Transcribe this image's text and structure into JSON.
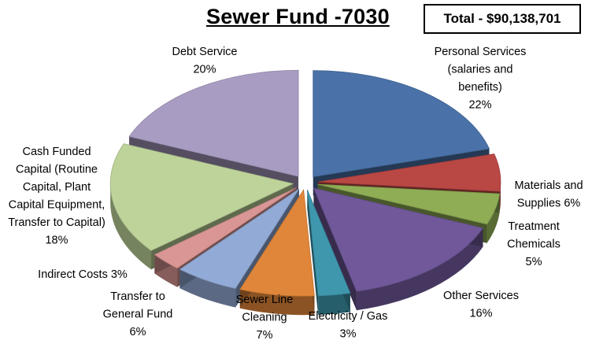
{
  "title": "Sewer Fund -7030",
  "total": "Total - $90,138,701",
  "chart_data": {
    "type": "pie",
    "title": "Sewer Fund -7030",
    "slices": [
      {
        "name": "Personal Services (salaries and benefits)",
        "label_lines": [
          "Personal Services",
          "(salaries and",
          "benefits)"
        ],
        "pct_text": "22%",
        "value": 22,
        "color": "#4A72A8"
      },
      {
        "name": "Materials and Supplies",
        "label_lines": [
          "Materials and",
          "Supplies 6%"
        ],
        "pct_text": "",
        "value": 6,
        "color": "#B94744"
      },
      {
        "name": "Treatment Chemicals",
        "label_lines": [
          "Treatment",
          "Chemicals"
        ],
        "pct_text": "5%",
        "value": 5,
        "color": "#8FAD55"
      },
      {
        "name": "Other Services",
        "label_lines": [
          "Other Services"
        ],
        "pct_text": "16%",
        "value": 16,
        "color": "#70589A"
      },
      {
        "name": "Electricity / Gas",
        "label_lines": [
          "Electricity / Gas"
        ],
        "pct_text": "3%",
        "value": 3,
        "color": "#3E97AD"
      },
      {
        "name": "Sewer Line Cleaning",
        "label_lines": [
          "Sewer Line",
          "Cleaning"
        ],
        "pct_text": "7%",
        "value": 7,
        "color": "#E0863A"
      },
      {
        "name": "Transfer to General Fund",
        "label_lines": [
          "Transfer to",
          "General Fund"
        ],
        "pct_text": "6%",
        "value": 6,
        "color": "#92AAD6"
      },
      {
        "name": "Indirect Costs",
        "label_lines": [
          "Indirect Costs 3%"
        ],
        "pct_text": "",
        "value": 3,
        "color": "#D99694"
      },
      {
        "name": "Cash Funded Capital (Routine Capital, Plant Capital Equipment, Transfer to Capital)",
        "label_lines": [
          "Cash Funded",
          "Capital (Routine",
          "Capital, Plant",
          "Capital Equipment,",
          "Transfer to Capital)"
        ],
        "pct_text": "18%",
        "value": 18,
        "color": "#BDD39A"
      },
      {
        "name": "Debt Service",
        "label_lines": [
          "Debt Service"
        ],
        "pct_text": "20%",
        "value": 20,
        "color": "#A99CC2"
      }
    ]
  }
}
